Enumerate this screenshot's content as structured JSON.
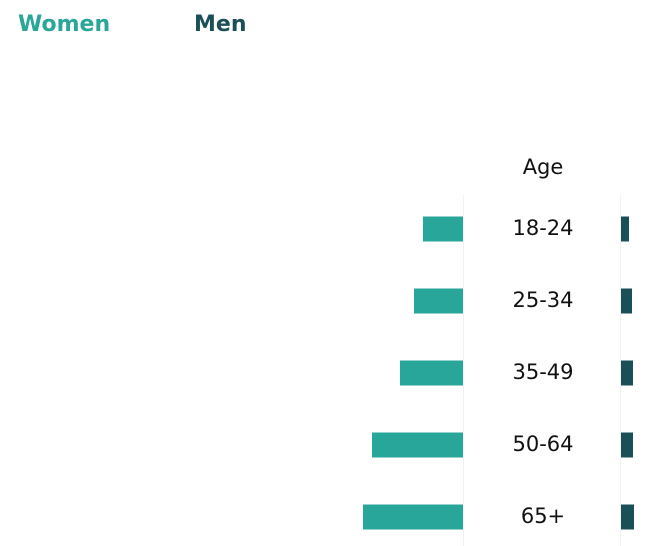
{
  "chart_data": {
    "type": "butterfly",
    "category_title": "Age",
    "categories": [
      "18-24",
      "25-34",
      "35-49",
      "50-64",
      "65+"
    ],
    "series": [
      {
        "name": "Women",
        "color": "#29a69a",
        "values": [
          40,
          49,
          63,
          91,
          100
        ]
      },
      {
        "name": "Men",
        "color": "#1b4f57",
        "values": [
          8,
          11,
          12,
          12,
          13
        ]
      }
    ]
  }
}
